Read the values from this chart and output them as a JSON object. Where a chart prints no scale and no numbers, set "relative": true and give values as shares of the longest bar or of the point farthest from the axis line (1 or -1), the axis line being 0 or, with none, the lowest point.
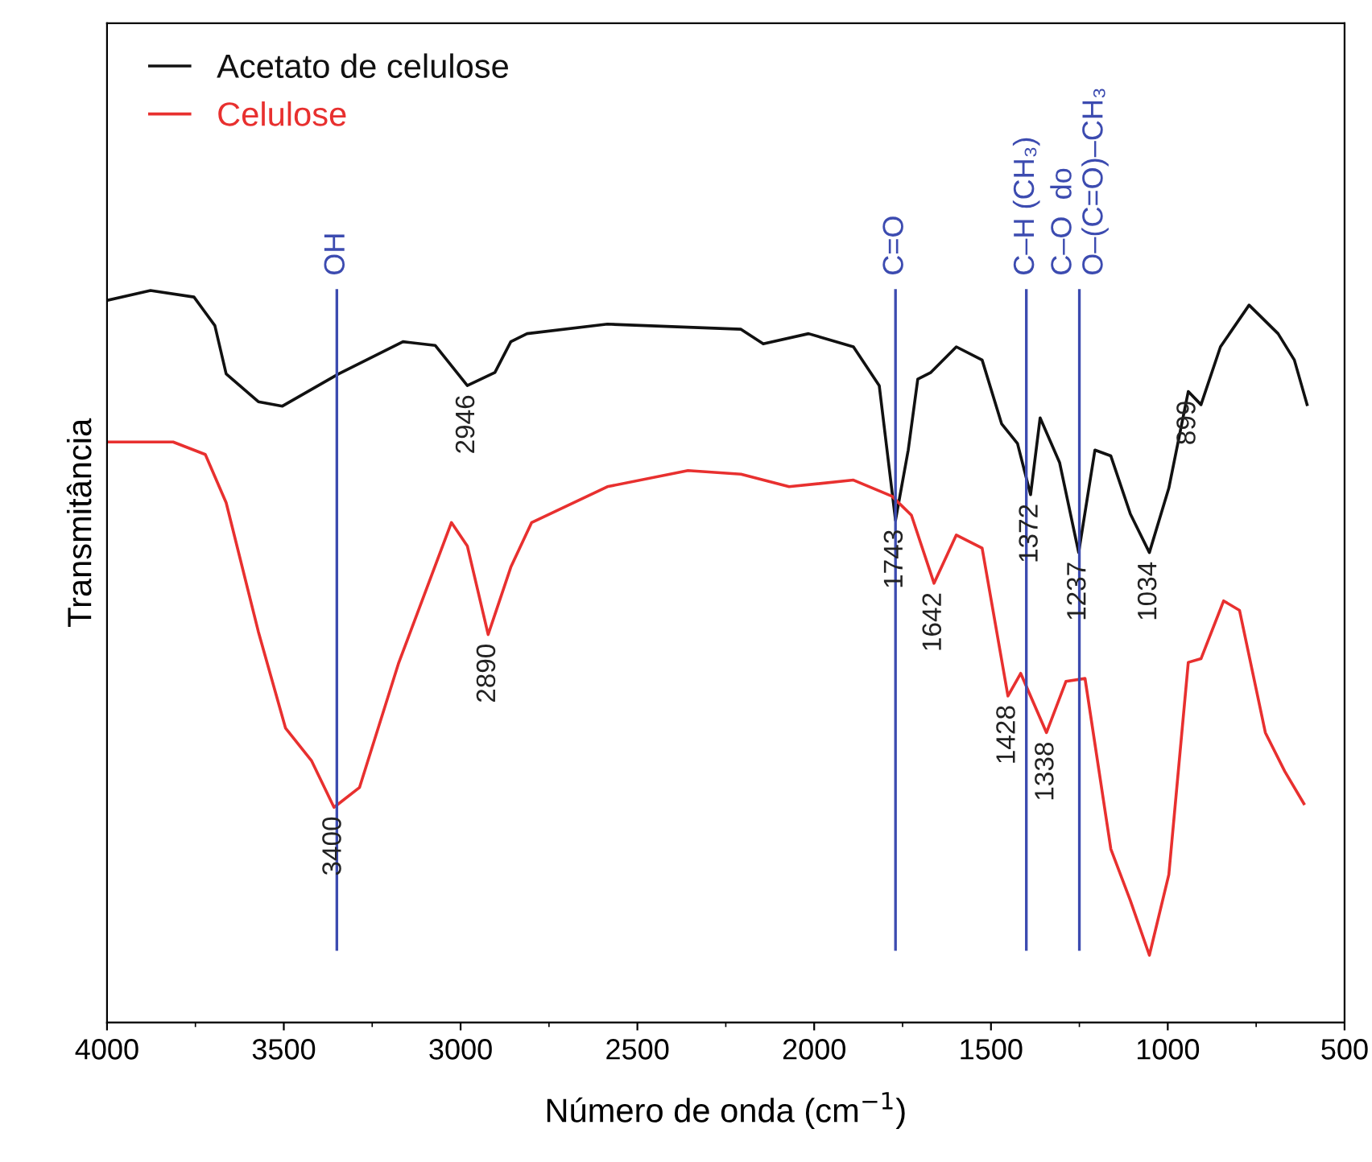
{
  "chart_data": {
    "type": "line",
    "xlabel": "Número de onda (cm$^{−1}$)",
    "ylabel": "Transmitância",
    "relative": true,
    "xlim": [
      4000,
      500
    ],
    "xticks": [
      4000,
      3500,
      3000,
      2500,
      2000,
      1500,
      1000,
      500
    ],
    "tick_labels": "x",
    "legend": "top left",
    "grid": false,
    "marker": "none",
    "line_style": "solid",
    "series": [
      {
        "name": "Acetato de celulose",
        "color": "#111111",
        "x": [
          3995,
          3877,
          3754,
          3695,
          3663,
          3572,
          3504,
          3345,
          3163,
          3072,
          2981,
          2903,
          2858,
          2812,
          2585,
          2207,
          2144,
          2016,
          1889,
          1816,
          1770,
          1734,
          1707,
          1670,
          1598,
          1525,
          1470,
          1425,
          1388,
          1361,
          1306,
          1252,
          1206,
          1161,
          1106,
          1052,
          997,
          942,
          906,
          851,
          770,
          688,
          642,
          606
        ],
        "values": [
          0.987,
          1.0,
          0.991,
          0.952,
          0.886,
          0.848,
          0.842,
          0.886,
          0.93,
          0.925,
          0.87,
          0.888,
          0.93,
          0.941,
          0.954,
          0.947,
          0.927,
          0.941,
          0.923,
          0.87,
          0.686,
          0.782,
          0.879,
          0.888,
          0.923,
          0.905,
          0.818,
          0.791,
          0.721,
          0.826,
          0.765,
          0.642,
          0.782,
          0.774,
          0.695,
          0.642,
          0.73,
          0.862,
          0.844,
          0.923,
          0.98,
          0.941,
          0.905,
          0.844
        ]
      },
      {
        "name": "Celulose",
        "color": "#e8302f",
        "x": [
          3995,
          3813,
          3722,
          3663,
          3572,
          3495,
          3422,
          3358,
          3286,
          3176,
          3026,
          2981,
          2922,
          2858,
          2799,
          2585,
          2357,
          2207,
          2071,
          1889,
          1780,
          1725,
          1661,
          1598,
          1525,
          1452,
          1416,
          1343,
          1288,
          1234,
          1161,
          1106,
          1052,
          997,
          942,
          906,
          842,
          797,
          724,
          669,
          615
        ],
        "values": [
          0.793,
          0.793,
          0.776,
          0.71,
          0.534,
          0.402,
          0.358,
          0.294,
          0.321,
          0.49,
          0.683,
          0.651,
          0.53,
          0.622,
          0.683,
          0.732,
          0.754,
          0.749,
          0.732,
          0.741,
          0.719,
          0.693,
          0.6,
          0.666,
          0.648,
          0.446,
          0.477,
          0.396,
          0.466,
          0.47,
          0.237,
          0.167,
          0.092,
          0.202,
          0.492,
          0.497,
          0.576,
          0.563,
          0.396,
          0.343,
          0.299
        ]
      }
    ],
    "ref_lines": [
      {
        "axis": "x",
        "value": 3350,
        "label": "OH",
        "color": "#3c4bb0"
      },
      {
        "axis": "x",
        "value": 1770,
        "label": "C=O",
        "color": "#3c4bb0"
      },
      {
        "axis": "x",
        "value": 1400,
        "label": "C–H (CH₃)",
        "color": "#3c4bb0"
      },
      {
        "axis": "x",
        "value": 1250,
        "label": "C–O  do\nO–(C=O)–CH₃",
        "color": "#3c4bb0"
      }
    ],
    "annotations": [
      {
        "text": "3400",
        "x": 3358,
        "y": 0.294
      },
      {
        "text": "2946",
        "x": 2981,
        "y": 0.87
      },
      {
        "text": "2890",
        "x": 2922,
        "y": 0.53
      },
      {
        "text": "1743",
        "x": 1770,
        "y": 0.686
      },
      {
        "text": "1642",
        "x": 1661,
        "y": 0.6
      },
      {
        "text": "1428",
        "x": 1452,
        "y": 0.446
      },
      {
        "text": "1338",
        "x": 1343,
        "y": 0.396
      },
      {
        "text": "1372",
        "x": 1388,
        "y": 0.721
      },
      {
        "text": "1237",
        "x": 1252,
        "y": 0.642
      },
      {
        "text": "1034",
        "x": 1052,
        "y": 0.642
      },
      {
        "text": "899",
        "x": 942,
        "y": 0.862
      }
    ]
  }
}
